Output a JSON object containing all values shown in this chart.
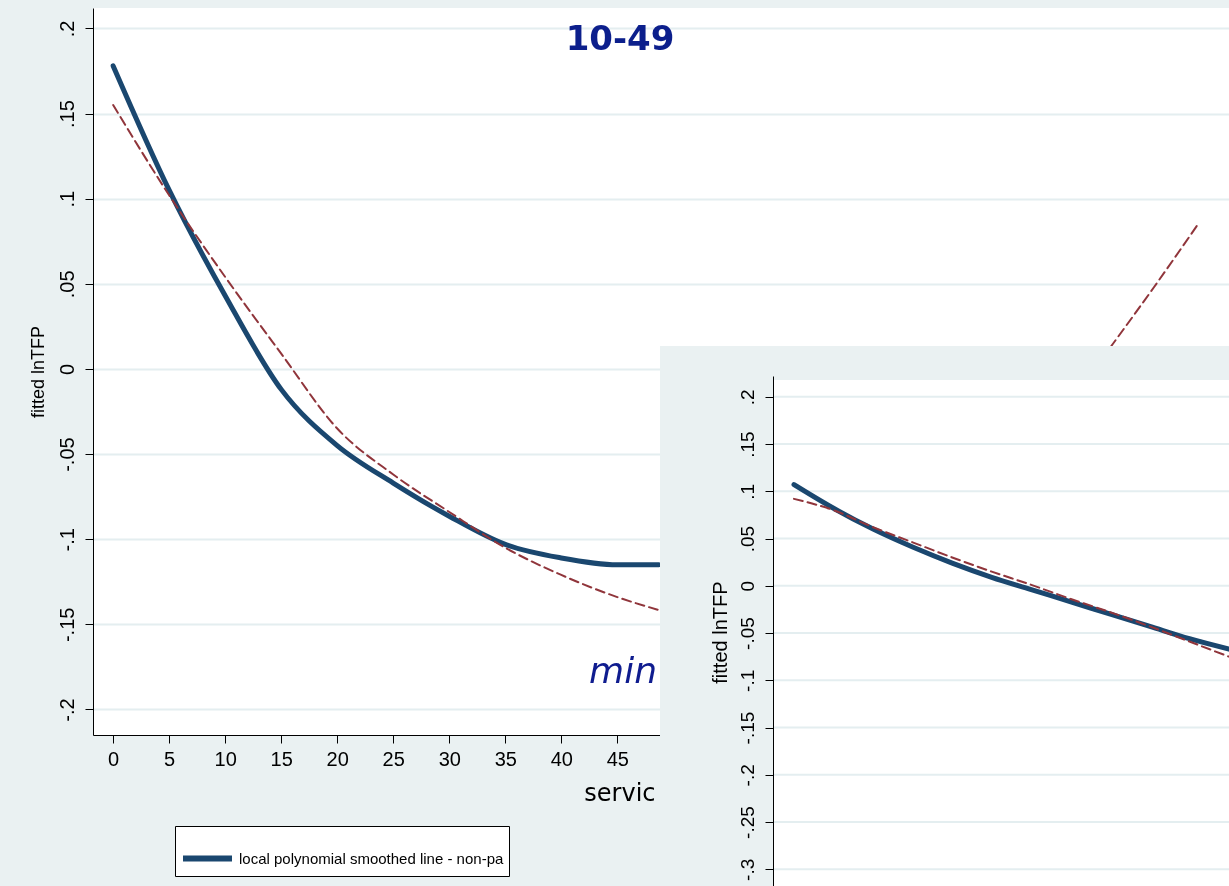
{
  "chart_data": [
    {
      "type": "line",
      "title": "10-49",
      "xlabel": "servic",
      "ylabel": "fitted lnTFP",
      "annotations": [
        "min"
      ],
      "xlim": [
        -1.8,
        99.6
      ],
      "xticks": [
        0,
        5,
        10,
        15,
        20,
        25,
        30,
        35,
        40,
        45
      ],
      "ylim": [
        -0.215,
        0.212
      ],
      "yticks": [
        {
          "value": 0.2,
          "label": ".2"
        },
        {
          "value": 0.15,
          "label": ".15"
        },
        {
          "value": 0.1,
          "label": ".1"
        },
        {
          "value": 0.05,
          "label": ".05"
        },
        0,
        {
          "value": -0.05,
          "label": "-.05"
        },
        {
          "value": -0.1,
          "label": "-.1"
        },
        {
          "value": -0.15,
          "label": "-.15"
        },
        {
          "value": -0.2,
          "label": "-.2"
        }
      ],
      "grid": "y",
      "legend": "bottom",
      "series": [
        {
          "name": "local polynomial smoothed line - non-pa",
          "color": "#1a476f",
          "line_style": "solid",
          "x": [
            0,
            5,
            10,
            15,
            20,
            25,
            30,
            35,
            40,
            45,
            48.7
          ],
          "values": [
            0.178,
            0.105,
            0.043,
            -0.012,
            -0.045,
            -0.067,
            -0.0865,
            -0.103,
            -0.111,
            -0.115,
            -0.115
          ]
        },
        {
          "color": "#90353b",
          "line_style": "dashed",
          "x": [
            0,
            5,
            10,
            15,
            20,
            25,
            30,
            35,
            40,
            45,
            48.7,
            70,
            89,
            92.9,
            96.8
          ],
          "values": [
            0.155,
            0.102,
            0.054,
            0.009,
            -0.035,
            -0.062,
            -0.084,
            -0.105,
            -0.121,
            -0.134,
            -0.1416,
            null,
            0.0126,
            0.048,
            0.0847
          ]
        }
      ]
    },
    {
      "type": "line",
      "ylabel": "fitted lnTFP",
      "categories": [
        null,
        null,
        null,
        null,
        null,
        null,
        null,
        null,
        null,
        null,
        null,
        null
      ],
      "ylim": [
        -0.32,
        0.222
      ],
      "yticks": [
        {
          "value": 0.2,
          "label": ".2"
        },
        {
          "value": 0.15,
          "label": ".15"
        },
        {
          "value": 0.1,
          "label": ".1"
        },
        {
          "value": 0.05,
          "label": ".05"
        },
        0,
        {
          "value": -0.05,
          "label": "-.05"
        },
        {
          "value": -0.1,
          "label": "-.1"
        },
        {
          "value": -0.15,
          "label": "-.15"
        },
        {
          "value": -0.2,
          "label": "-.2"
        },
        {
          "value": -0.25,
          "label": "-.25"
        },
        {
          "value": -0.3,
          "label": "-.3"
        }
      ],
      "grid": "y",
      "tick_labels": "y",
      "series": [
        {
          "color": "#1a476f",
          "line_style": "solid",
          "values": [
            0.107,
            0.082,
            0.06,
            0.041,
            0.024,
            0.009,
            -0.004,
            -0.017,
            -0.03,
            -0.043,
            -0.056,
            -0.067
          ]
        },
        {
          "color": "#90353b",
          "line_style": "dashed",
          "values": [
            0.092,
            0.08,
            0.062,
            0.046,
            0.03,
            0.015,
            0.001,
            -0.014,
            -0.028,
            -0.043,
            -0.059,
            -0.075
          ]
        }
      ]
    }
  ]
}
